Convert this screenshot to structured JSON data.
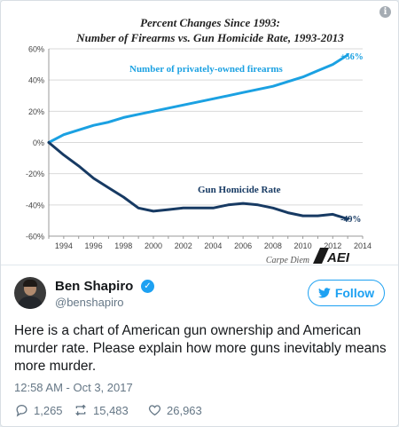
{
  "tweet": {
    "name": "Ben Shapiro",
    "handle": "@benshapiro",
    "follow_label": "Follow",
    "text": "Here is a chart of American gun ownership and American murder rate. Please explain how more guns inevitably means more murder.",
    "time": "12:58 AM - Oct 3, 2017",
    "replies": "1,265",
    "retweets": "15,483",
    "likes": "26,963"
  },
  "colors": {
    "accent": "#1da1f2",
    "firearms_line": "#1ba1e2",
    "homicide_line": "#173a63"
  },
  "chart_data": {
    "type": "line",
    "title": "Percent Changes Since 1993:",
    "subtitle": "Number of Firearms vs. Gun Homicide Rate, 1993-2013",
    "source": "Carpe Diem",
    "logo": "AEI",
    "xlim": [
      1993,
      2014
    ],
    "ylim": [
      -60,
      60
    ],
    "x_ticks": [
      1994,
      1996,
      1998,
      2000,
      2002,
      2004,
      2006,
      2008,
      2010,
      2012,
      2014
    ],
    "y_ticks": [
      {
        "value": 60,
        "label": "60%"
      },
      {
        "value": 40,
        "label": "40%"
      },
      {
        "value": 20,
        "label": "20%"
      },
      {
        "value": 0,
        "label": "0%"
      },
      {
        "value": -20,
        "label": "-20%"
      },
      {
        "value": -40,
        "label": "-40%"
      },
      {
        "value": -60,
        "label": "-60%"
      }
    ],
    "grid": true,
    "x": [
      1993,
      1994,
      1995,
      1996,
      1997,
      1998,
      1999,
      2000,
      2001,
      2002,
      2003,
      2004,
      2005,
      2006,
      2007,
      2008,
      2009,
      2010,
      2011,
      2012,
      2013
    ],
    "series": [
      {
        "name": "Number of privately-owned firearms",
        "end_label": "+56%",
        "values": [
          0,
          5,
          8,
          11,
          13,
          16,
          18,
          20,
          22,
          24,
          26,
          28,
          30,
          32,
          34,
          36,
          39,
          42,
          46,
          50,
          56
        ]
      },
      {
        "name": "Gun Homicide Rate",
        "end_label": "-49%",
        "values": [
          0,
          -8,
          -15,
          -23,
          -29,
          -35,
          -42,
          -44,
          -43,
          -42,
          -42,
          -42,
          -40,
          -39,
          -40,
          -42,
          -45,
          -47,
          -47,
          -46,
          -49
        ]
      }
    ]
  }
}
